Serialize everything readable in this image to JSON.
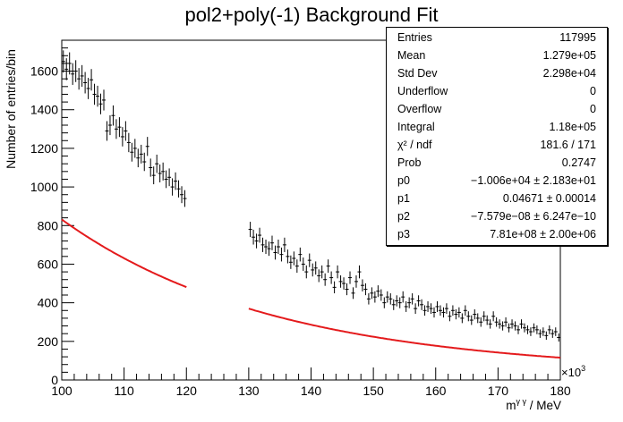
{
  "chart_data": {
    "type": "scatter",
    "title": "pol2+poly(-1) Background Fit",
    "xlabel_main": "m",
    "xlabel_sup": "γ γ",
    "xlabel_unit": " / MeV",
    "ylabel": "Number of entries/bin",
    "x_exponent": "×10",
    "x_exponent_power": "3",
    "xlim": [
      100,
      180
    ],
    "ylim": [
      0,
      1760
    ],
    "xticks": [
      100,
      110,
      120,
      130,
      140,
      150,
      160,
      170,
      180
    ],
    "yticks": [
      0,
      200,
      400,
      600,
      800,
      1000,
      1200,
      1400,
      1600
    ],
    "grid": false,
    "fit_color": "#e41a1c",
    "point_color": "#000000",
    "fit": {
      "name": "pol2+poly(-1)",
      "p0": -10060,
      "p1": 0.04671,
      "p2": -7.579e-08,
      "p3": 781000000.0,
      "x_range_mev": [
        100000,
        180000
      ],
      "excluded_range_mev": [
        120000,
        130000
      ]
    },
    "series": [
      {
        "x": [
          100.25,
          100.75,
          101.25,
          101.75,
          102.25,
          102.75,
          103.25,
          103.75,
          104.25,
          104.75,
          105.25,
          105.75,
          106.25,
          106.75,
          107.25,
          107.75,
          108.25,
          108.75,
          109.25,
          109.75,
          110.25,
          110.75,
          111.25,
          111.75,
          112.25,
          112.75,
          113.25,
          113.75,
          114.25,
          114.75,
          115.25,
          115.75,
          116.25,
          116.75,
          117.25,
          117.75,
          118.25,
          118.75,
          119.25,
          119.75,
          130.25,
          130.75,
          131.25,
          131.75,
          132.25,
          132.75,
          133.25,
          133.75,
          134.25,
          134.75,
          135.25,
          135.75,
          136.25,
          136.75,
          137.25,
          137.75,
          138.25,
          138.75,
          139.25,
          139.75,
          140.25,
          140.75,
          141.25,
          141.75,
          142.25,
          142.75,
          143.25,
          143.75,
          144.25,
          144.75,
          145.25,
          145.75,
          146.25,
          146.75,
          147.25,
          147.75,
          148.25,
          148.75,
          149.25,
          149.75,
          150.25,
          150.75,
          151.25,
          151.75,
          152.25,
          152.75,
          153.25,
          153.75,
          154.25,
          154.75,
          155.25,
          155.75,
          156.25,
          156.75,
          157.25,
          157.75,
          158.25,
          158.75,
          159.25,
          159.75,
          160.25,
          160.75,
          161.25,
          161.75,
          162.25,
          162.75,
          163.25,
          163.75,
          164.25,
          164.75,
          165.25,
          165.75,
          166.25,
          166.75,
          167.25,
          167.75,
          168.25,
          168.75,
          169.25,
          169.75,
          170.25,
          170.75,
          171.25,
          171.75,
          172.25,
          172.75,
          173.25,
          173.75,
          174.25,
          174.75,
          175.25,
          175.75,
          176.25,
          176.75,
          177.25,
          177.75,
          178.25,
          178.75,
          179.25,
          179.75
        ],
        "y": [
          1650,
          1610,
          1640,
          1585,
          1600,
          1560,
          1575,
          1540,
          1510,
          1555,
          1480,
          1470,
          1430,
          1450,
          1290,
          1320,
          1370,
          1300,
          1310,
          1260,
          1290,
          1230,
          1180,
          1200,
          1150,
          1170,
          1130,
          1210,
          1100,
          1060,
          1120,
          1070,
          1080,
          1040,
          1050,
          1000,
          1030,
          990,
          960,
          940,
          780,
          740,
          720,
          750,
          700,
          690,
          680,
          710,
          660,
          690,
          650,
          700,
          640,
          610,
          630,
          590,
          650,
          600,
          560,
          620,
          570,
          580,
          540,
          560,
          520,
          590,
          530,
          480,
          560,
          510,
          500,
          470,
          530,
          450,
          510,
          560,
          490,
          470,
          420,
          450,
          430,
          460,
          440,
          400,
          430,
          420,
          390,
          410,
          400,
          430,
          380,
          400,
          420,
          370,
          410,
          390,
          360,
          380,
          370,
          350,
          380,
          360,
          350,
          370,
          330,
          360,
          340,
          350,
          320,
          360,
          330,
          310,
          340,
          320,
          300,
          330,
          310,
          290,
          330,
          300,
          290,
          280,
          300,
          270,
          290,
          280,
          260,
          290,
          270,
          260,
          250,
          270,
          260,
          240,
          250,
          230,
          260,
          240,
          250,
          220
        ]
      }
    ]
  },
  "stats": {
    "rows": [
      {
        "key": "Entries",
        "value": "117995"
      },
      {
        "key": "Mean",
        "value": "1.279e+05"
      },
      {
        "key": "Std Dev",
        "value": "2.298e+04"
      },
      {
        "key": "Underflow",
        "value": "0"
      },
      {
        "key": "Overflow",
        "value": "0"
      },
      {
        "key": "Integral",
        "value": "1.18e+05"
      },
      {
        "key": "χ² / ndf",
        "value": "181.6 / 171"
      },
      {
        "key": "Prob",
        "value": "0.2747"
      },
      {
        "key": "p0",
        "value": "−1.006e+04  ± 2.183e+01"
      },
      {
        "key": "p1",
        "value": "0.04671 ± 0.00014"
      },
      {
        "key": "p2",
        "value": "−7.579e−08 ± 6.247e−10"
      },
      {
        "key": "p3",
        "value": "7.81e+08  ± 2.00e+06"
      }
    ]
  }
}
